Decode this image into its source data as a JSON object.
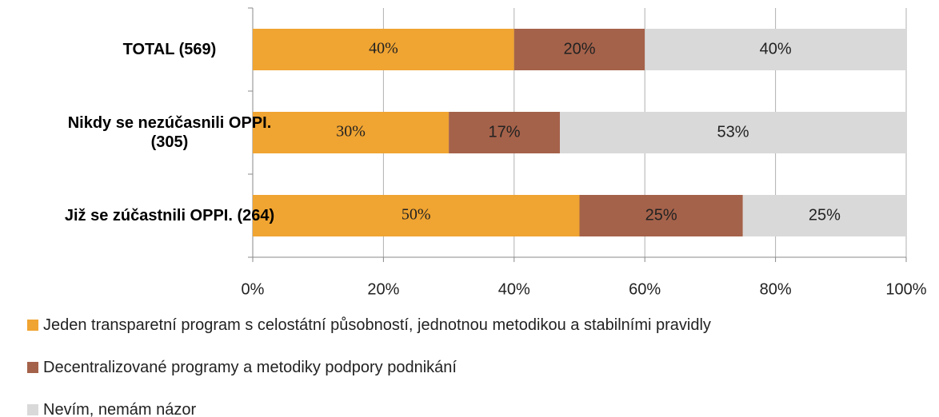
{
  "chart_data": {
    "type": "stacked_bar_horizontal",
    "categories": [
      "TOTAL (569)",
      "Nikdy se nezúčasnili OPPI. (305)",
      "Již se zúčastnili OPPI. (264)"
    ],
    "series": [
      {
        "name": "Jeden transparetní program s celostátní působností, jednotnou metodikou a stabilními pravidly",
        "color": "#f0a431",
        "values": [
          40,
          30,
          50
        ],
        "value_labels": [
          "40%",
          "30%",
          "50%"
        ]
      },
      {
        "name": "Decentralizované programy a metodiky podpory podnikání",
        "color": "#a5624a",
        "values": [
          20,
          17,
          25
        ],
        "value_labels": [
          "20%",
          "17%",
          "25%"
        ]
      },
      {
        "name": "Nevím, nemám názor",
        "color": "#d9d9d9",
        "values": [
          40,
          53,
          25
        ],
        "value_labels": [
          "40%",
          "53%",
          "25%"
        ]
      }
    ],
    "xlim": [
      0,
      100
    ],
    "xticks": [
      {
        "value": 0,
        "label": "0%"
      },
      {
        "value": 20,
        "label": "20%"
      },
      {
        "value": 40,
        "label": "40%"
      },
      {
        "value": 60,
        "label": "60%"
      },
      {
        "value": 80,
        "label": "80%"
      },
      {
        "value": 100,
        "label": "100%"
      }
    ],
    "grid": true,
    "legend": "bottom"
  }
}
